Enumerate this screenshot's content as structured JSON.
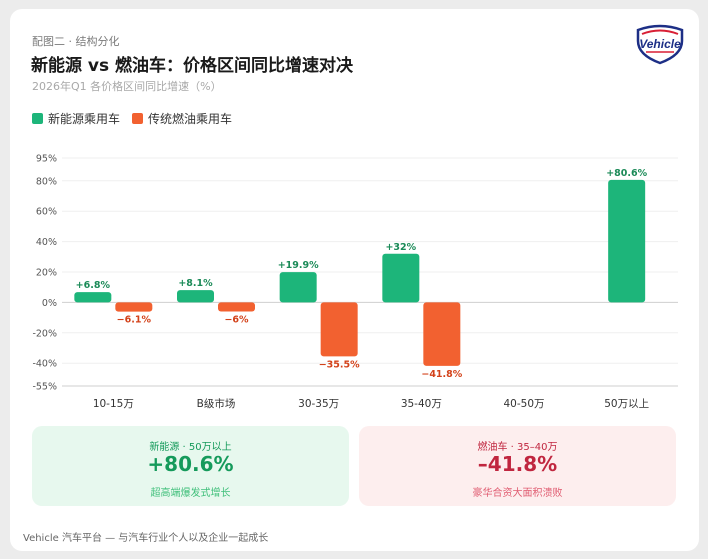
{
  "header": {
    "kicker": "配图二 · 结构分化",
    "title": "新能源 vs 燃油车：价格区间同比增速对决",
    "subtitle": "2026年Q1 各价格区间同比增速（%）",
    "logo_text": "Vehicle"
  },
  "legend": [
    {
      "label": "新能源乘用车",
      "color": "#1db57a"
    },
    {
      "label": "传统燃油乘用车",
      "color": "#f26130"
    }
  ],
  "chart_data": {
    "type": "bar",
    "categories": [
      "10-15万",
      "B级市场",
      "30-35万",
      "35-40万",
      "40-50万",
      "50万以上"
    ],
    "series": [
      {
        "name": "新能源乘用车",
        "color": "#1db57a",
        "values": [
          6.8,
          8.1,
          19.9,
          32,
          null,
          80.6
        ],
        "labels": [
          "+6.8%",
          "+8.1%",
          "+19.9%",
          "+32%",
          "",
          "+80.6%"
        ],
        "label_color": "#1a8a57"
      },
      {
        "name": "传统燃油乘用车",
        "color": "#f26130",
        "values": [
          -6.1,
          -6,
          -35.5,
          -41.8,
          null,
          null
        ],
        "labels": [
          "−6.1%",
          "−6%",
          "−35.5%",
          "−41.8%",
          "",
          ""
        ],
        "label_color": "#d3421a"
      }
    ],
    "ylim": [
      -55,
      95
    ],
    "yticks": [
      95,
      80,
      60,
      40,
      20,
      0,
      -20,
      -40,
      -55
    ],
    "ytick_labels": [
      "95%",
      "80%",
      "60%",
      "40%",
      "20%",
      "0%",
      "-20%",
      "-40%",
      "-55%"
    ],
    "grid": true
  },
  "highlights": [
    {
      "label": "新能源 · 50万以上",
      "value": "+80.6%",
      "note": "超高端爆发式增长"
    },
    {
      "label": "燃油车 · 35–40万",
      "value": "–41.8%",
      "note": "豪华合资大面积溃败"
    }
  ],
  "footer": "Vehicle 汽车平台 — 与汽车行业个人以及企业一起成长"
}
